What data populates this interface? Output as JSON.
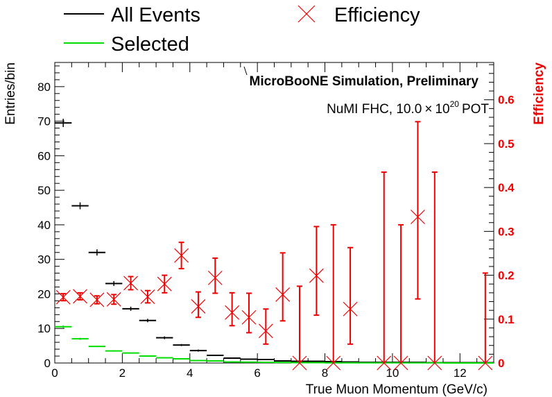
{
  "chart_data": {
    "type": "scatter",
    "title": "",
    "annotations": {
      "experiment": "MicroBooNE Simulation, Preliminary",
      "beam_prefix": "NuMI FHC, 10.0",
      "beam_times": "×",
      "beam_base": "10",
      "beam_exp": "20",
      "beam_unit": "POT"
    },
    "xlabel": "True Muon Momentum (GeV/c)",
    "ylabel": "Entries/bin",
    "y2label": "Efficiency",
    "xlim": [
      0,
      13
    ],
    "ylim": [
      0,
      87
    ],
    "y2lim": [
      0,
      0.685
    ],
    "x_ticks": [
      0,
      2,
      4,
      6,
      8,
      10,
      12
    ],
    "y_ticks": [
      0,
      10,
      20,
      30,
      40,
      50,
      60,
      70,
      80
    ],
    "y2_ticks": [
      0,
      0.1,
      0.2,
      0.3,
      0.4,
      0.5,
      0.6
    ],
    "y2_tick_labels": [
      "0",
      "0.1",
      "0.2",
      "0.3",
      "0.4",
      "0.5",
      "0.6"
    ],
    "legend": {
      "placement": "top",
      "entries": [
        {
          "name": "All Events",
          "color": "#000000",
          "marker": "line"
        },
        {
          "name": "Selected",
          "color": "#00dd00",
          "marker": "line"
        },
        {
          "name": "Efficiency",
          "color": "#ee0000",
          "marker": "x"
        }
      ]
    },
    "bin_width": 0.5,
    "series": [
      {
        "name": "All Events",
        "color": "#000000",
        "x": [
          0.25,
          0.75,
          1.25,
          1.75,
          2.25,
          2.75,
          3.25,
          3.75,
          4.25,
          4.75,
          5.25,
          5.75,
          6.25,
          6.75,
          7.25,
          7.75,
          8.25,
          8.75,
          9.25,
          9.75,
          10.25,
          10.75,
          11.25,
          11.75,
          12.25,
          12.75
        ],
        "y": [
          69.5,
          45.5,
          32,
          23,
          15.7,
          12.3,
          7.3,
          5.2,
          3.6,
          2.2,
          1.4,
          1.1,
          1.0,
          0.6,
          0.5,
          0.5,
          0.4,
          0.3,
          0.2,
          0.2,
          0.2,
          0.2,
          0.1,
          0.1,
          0.1,
          0.1
        ],
        "yerr": [
          1.2,
          1.0,
          0.9,
          0.7,
          0.6,
          0.5,
          0.4,
          0.3,
          0.3,
          0.2,
          0.2,
          0.15,
          0.15,
          0.1,
          0.1,
          0.1,
          0.1,
          0.1,
          0.05,
          0.05,
          0.05,
          0.05,
          0.05,
          0.05,
          0.05,
          0.05
        ]
      },
      {
        "name": "Selected",
        "color": "#00dd00",
        "x": [
          0.25,
          0.75,
          1.25,
          1.75,
          2.25,
          2.75,
          3.25,
          3.75,
          4.25,
          4.75,
          5.25,
          5.75,
          6.25,
          6.75,
          7.25,
          7.75,
          8.25,
          8.75,
          9.25,
          9.75,
          10.25,
          10.75,
          11.25,
          11.75,
          12.25,
          12.75
        ],
        "y": [
          10.5,
          7.0,
          4.8,
          3.5,
          2.9,
          2.0,
          1.5,
          1.2,
          0.7,
          0.6,
          0.3,
          0.25,
          0.2,
          0.15,
          0.1,
          0.1,
          0.05,
          0.05,
          0.05,
          0.05,
          0.05,
          0.05,
          0.05,
          0.0,
          0.0,
          0.0
        ],
        "yerr": [
          0.4,
          0.3,
          0.2,
          0.2,
          0.15,
          0.1,
          0.1,
          0.1,
          0.05,
          0.05,
          0.05,
          0.05,
          0.05,
          0.05,
          0.05,
          0.05,
          0.05,
          0.05,
          0.05,
          0.05,
          0.05,
          0.05,
          0.05,
          0.05,
          0.05,
          0.05
        ]
      },
      {
        "name": "Efficiency",
        "color": "#ee0000",
        "axis": "right",
        "x": [
          0.25,
          0.75,
          1.25,
          1.75,
          2.25,
          2.75,
          3.25,
          3.75,
          4.25,
          4.75,
          5.25,
          5.75,
          6.25,
          6.75,
          7.25,
          7.75,
          8.25,
          8.75,
          9.75,
          10.25,
          10.75,
          11.25,
          12.75
        ],
        "y": [
          0.15,
          0.152,
          0.144,
          0.145,
          0.182,
          0.151,
          0.18,
          0.245,
          0.129,
          0.194,
          0.115,
          0.104,
          0.073,
          0.156,
          0.0,
          0.199,
          0.0,
          0.123,
          0.0,
          0.0,
          0.333,
          0.0,
          0.0
        ],
        "yerr_low": [
          0.008,
          0.008,
          0.009,
          0.011,
          0.015,
          0.014,
          0.02,
          0.03,
          0.025,
          0.035,
          0.03,
          0.035,
          0.03,
          0.06,
          0.0,
          0.09,
          0.0,
          0.08,
          0.0,
          0.0,
          0.187,
          0.0,
          0.0
        ],
        "yerr_high": [
          0.008,
          0.008,
          0.009,
          0.011,
          0.015,
          0.014,
          0.02,
          0.03,
          0.033,
          0.045,
          0.045,
          0.055,
          0.05,
          0.095,
          0.175,
          0.112,
          0.315,
          0.14,
          0.435,
          0.315,
          0.217,
          0.435,
          0.205
        ]
      }
    ]
  }
}
